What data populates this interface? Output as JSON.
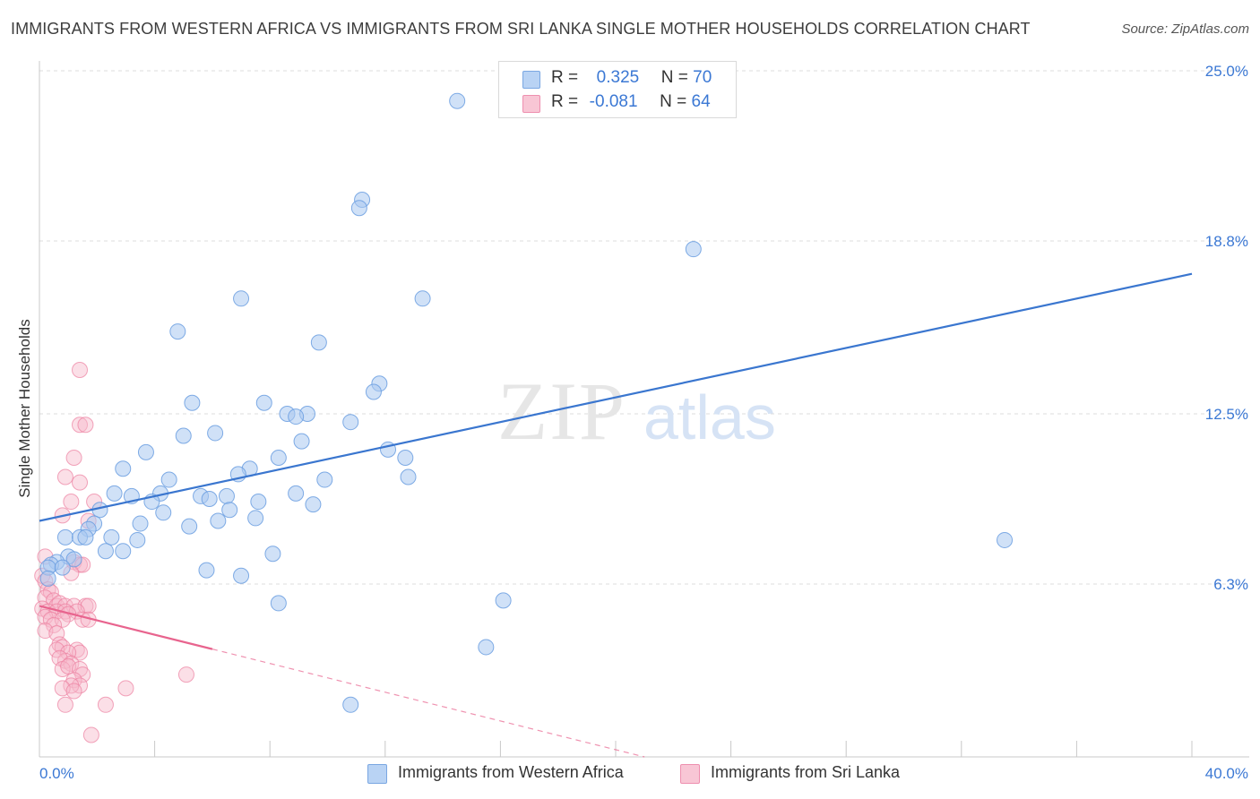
{
  "title": "IMMIGRANTS FROM WESTERN AFRICA VS IMMIGRANTS FROM SRI LANKA SINGLE MOTHER HOUSEHOLDS CORRELATION CHART",
  "source": "Source: ZipAtlas.com",
  "watermark": {
    "zip": "ZIP",
    "atlas": "atlas"
  },
  "legend": {
    "series1": {
      "r_label": "R =",
      "r_value": "0.325",
      "n_label": "N =",
      "n_value": "70"
    },
    "series2": {
      "r_label": "R =",
      "r_value": "-0.081",
      "n_label": "N =",
      "n_value": "64"
    }
  },
  "colors": {
    "blue_fill": "#a9c8f0",
    "blue_stroke": "#6a9ee0",
    "blue_line": "#3a76cf",
    "pink_fill": "#f6b8ca",
    "pink_stroke": "#ec7fa0",
    "pink_line": "#e8648e",
    "grid": "#dcdcdc",
    "tick_text": "#3b78d4"
  },
  "chart_data": {
    "type": "scatter",
    "title": "IMMIGRANTS FROM WESTERN AFRICA VS IMMIGRANTS FROM SRI LANKA SINGLE MOTHER HOUSEHOLDS CORRELATION CHART",
    "xlabel": "",
    "ylabel": "Single Mother Households",
    "xlim": [
      0,
      40
    ],
    "ylim": [
      0,
      25
    ],
    "x_tick_labels": [
      "0.0%",
      "40.0%"
    ],
    "y_ticks": [
      6.3,
      12.5,
      18.8,
      25.0
    ],
    "y_tick_labels": [
      "6.3%",
      "12.5%",
      "18.8%",
      "25.0%"
    ],
    "grid": true,
    "legend_position": "bottom",
    "series": [
      {
        "name": "Immigrants from Western Africa",
        "color": "blue",
        "trend": {
          "x": [
            0,
            40
          ],
          "y": [
            8.6,
            17.6
          ],
          "style": "solid"
        },
        "points": [
          [
            14.5,
            23.9
          ],
          [
            11.2,
            20.3
          ],
          [
            11.1,
            20.0
          ],
          [
            22.7,
            18.5
          ],
          [
            7.0,
            16.7
          ],
          [
            13.3,
            16.7
          ],
          [
            4.8,
            15.5
          ],
          [
            9.7,
            15.1
          ],
          [
            11.8,
            13.6
          ],
          [
            11.6,
            13.3
          ],
          [
            5.3,
            12.9
          ],
          [
            7.8,
            12.9
          ],
          [
            8.6,
            12.5
          ],
          [
            9.3,
            12.5
          ],
          [
            8.9,
            12.4
          ],
          [
            10.8,
            12.2
          ],
          [
            5.0,
            11.7
          ],
          [
            6.1,
            11.8
          ],
          [
            9.1,
            11.5
          ],
          [
            3.7,
            11.1
          ],
          [
            12.1,
            11.2
          ],
          [
            8.3,
            10.9
          ],
          [
            12.7,
            10.9
          ],
          [
            2.9,
            10.5
          ],
          [
            7.3,
            10.5
          ],
          [
            6.9,
            10.3
          ],
          [
            9.9,
            10.1
          ],
          [
            12.8,
            10.2
          ],
          [
            4.5,
            10.1
          ],
          [
            2.6,
            9.6
          ],
          [
            3.2,
            9.5
          ],
          [
            4.2,
            9.6
          ],
          [
            5.6,
            9.5
          ],
          [
            6.5,
            9.5
          ],
          [
            8.9,
            9.6
          ],
          [
            3.9,
            9.3
          ],
          [
            5.9,
            9.4
          ],
          [
            7.6,
            9.3
          ],
          [
            9.5,
            9.2
          ],
          [
            2.1,
            9.0
          ],
          [
            6.6,
            9.0
          ],
          [
            4.3,
            8.9
          ],
          [
            3.5,
            8.5
          ],
          [
            6.2,
            8.6
          ],
          [
            7.5,
            8.7
          ],
          [
            1.9,
            8.5
          ],
          [
            5.2,
            8.4
          ],
          [
            1.7,
            8.3
          ],
          [
            0.9,
            8.0
          ],
          [
            1.4,
            8.0
          ],
          [
            1.6,
            8.0
          ],
          [
            2.5,
            8.0
          ],
          [
            3.4,
            7.9
          ],
          [
            2.3,
            7.5
          ],
          [
            2.9,
            7.5
          ],
          [
            8.1,
            7.4
          ],
          [
            1.0,
            7.3
          ],
          [
            1.2,
            7.2
          ],
          [
            0.6,
            7.1
          ],
          [
            0.4,
            7.0
          ],
          [
            0.3,
            6.9
          ],
          [
            0.8,
            6.9
          ],
          [
            5.8,
            6.8
          ],
          [
            7.0,
            6.6
          ],
          [
            0.3,
            6.5
          ],
          [
            8.3,
            5.6
          ],
          [
            16.1,
            5.7
          ],
          [
            15.5,
            4.0
          ],
          [
            10.8,
            1.9
          ],
          [
            33.5,
            7.9
          ]
        ]
      },
      {
        "name": "Immigrants from Sri Lanka",
        "color": "pink",
        "trend": {
          "x": [
            0,
            21
          ],
          "y": [
            5.5,
            0.0
          ],
          "style": "solid to 6.0 then dashed"
        },
        "points": [
          [
            1.4,
            14.1
          ],
          [
            1.4,
            12.1
          ],
          [
            1.6,
            12.1
          ],
          [
            1.2,
            10.9
          ],
          [
            0.9,
            10.2
          ],
          [
            1.4,
            10.0
          ],
          [
            1.1,
            9.3
          ],
          [
            1.9,
            9.3
          ],
          [
            0.8,
            8.8
          ],
          [
            1.7,
            8.6
          ],
          [
            1.2,
            7.1
          ],
          [
            1.4,
            7.0
          ],
          [
            1.5,
            7.0
          ],
          [
            1.1,
            6.7
          ],
          [
            0.2,
            7.3
          ],
          [
            0.1,
            6.6
          ],
          [
            0.2,
            6.4
          ],
          [
            0.3,
            6.1
          ],
          [
            0.4,
            6.0
          ],
          [
            0.2,
            5.8
          ],
          [
            0.5,
            5.7
          ],
          [
            0.6,
            5.5
          ],
          [
            0.7,
            5.6
          ],
          [
            0.9,
            5.5
          ],
          [
            1.2,
            5.5
          ],
          [
            1.6,
            5.5
          ],
          [
            1.7,
            5.5
          ],
          [
            0.1,
            5.4
          ],
          [
            0.3,
            5.3
          ],
          [
            0.6,
            5.3
          ],
          [
            0.9,
            5.3
          ],
          [
            1.3,
            5.3
          ],
          [
            1.0,
            5.2
          ],
          [
            0.2,
            5.1
          ],
          [
            0.4,
            5.0
          ],
          [
            0.8,
            5.0
          ],
          [
            1.5,
            5.0
          ],
          [
            1.7,
            5.0
          ],
          [
            0.5,
            4.8
          ],
          [
            0.2,
            4.6
          ],
          [
            0.6,
            4.5
          ],
          [
            0.7,
            4.1
          ],
          [
            0.8,
            4.0
          ],
          [
            0.6,
            3.9
          ],
          [
            1.3,
            3.9
          ],
          [
            1.4,
            3.8
          ],
          [
            1.0,
            3.8
          ],
          [
            0.9,
            3.5
          ],
          [
            0.7,
            3.6
          ],
          [
            1.1,
            3.4
          ],
          [
            0.8,
            3.2
          ],
          [
            1.0,
            3.3
          ],
          [
            1.4,
            3.2
          ],
          [
            5.1,
            3.0
          ],
          [
            1.5,
            3.0
          ],
          [
            1.2,
            2.8
          ],
          [
            1.4,
            2.6
          ],
          [
            1.1,
            2.6
          ],
          [
            0.8,
            2.5
          ],
          [
            3.0,
            2.5
          ],
          [
            1.2,
            2.4
          ],
          [
            0.9,
            1.9
          ],
          [
            2.3,
            1.9
          ],
          [
            1.8,
            0.8
          ]
        ]
      }
    ]
  },
  "bottom_legend": {
    "series1": "Immigrants from Western Africa",
    "series2": "Immigrants from Sri Lanka"
  }
}
